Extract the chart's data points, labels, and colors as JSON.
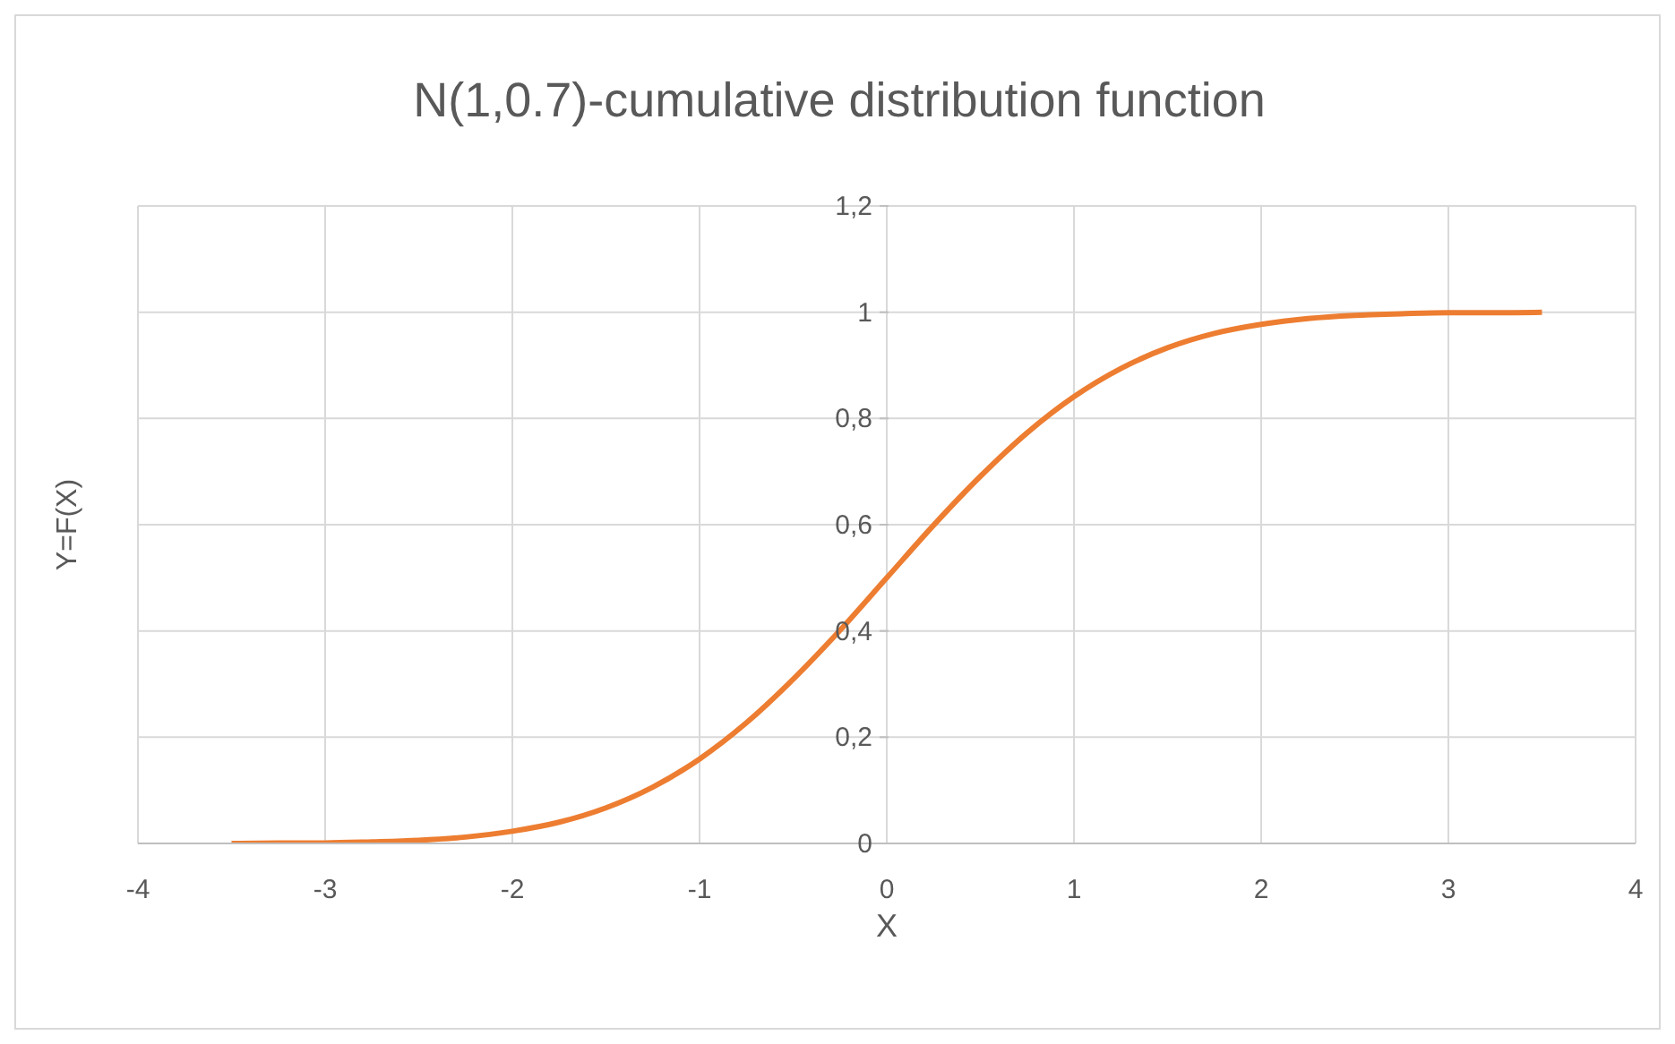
{
  "chart_data": {
    "type": "line",
    "title": "N(1,0.7)-cumulative distribution function",
    "xlabel": "X",
    "ylabel": "Y=F(X)",
    "x": [
      -3.5,
      -3.25,
      -3,
      -2.75,
      -2.5,
      -2.25,
      -2,
      -1.75,
      -1.5,
      -1.25,
      -1,
      -0.75,
      -0.5,
      -0.25,
      0,
      0.25,
      0.5,
      0.75,
      1,
      1.25,
      1.5,
      1.75,
      2,
      2.25,
      2.5,
      2.75,
      3,
      3.25,
      3.5
    ],
    "series": [
      {
        "color": "#ed7d31",
        "values": [
          0,
          0.001,
          0.001,
          0.003,
          0.006,
          0.012,
          0.023,
          0.04,
          0.067,
          0.106,
          0.159,
          0.227,
          0.309,
          0.401,
          0.5,
          0.599,
          0.691,
          0.773,
          0.841,
          0.894,
          0.933,
          0.96,
          0.977,
          0.988,
          0.994,
          0.997,
          0.999,
          0.999,
          1
        ]
      }
    ],
    "xlim": [
      -4,
      4
    ],
    "xticks": [
      -4,
      -3,
      -2,
      -1,
      0,
      1,
      2,
      3,
      4
    ],
    "ylim": [
      0,
      1.2
    ],
    "yticks": [
      0,
      {
        "value": 0.2,
        "label": "0,2"
      },
      {
        "value": 0.4,
        "label": "0,4"
      },
      {
        "value": 0.6,
        "label": "0,6"
      },
      {
        "value": 0.8,
        "label": "0,8"
      },
      1,
      {
        "value": 1.2,
        "label": "1,2"
      }
    ],
    "grid": true,
    "marker": "none",
    "line_style": "solid"
  }
}
